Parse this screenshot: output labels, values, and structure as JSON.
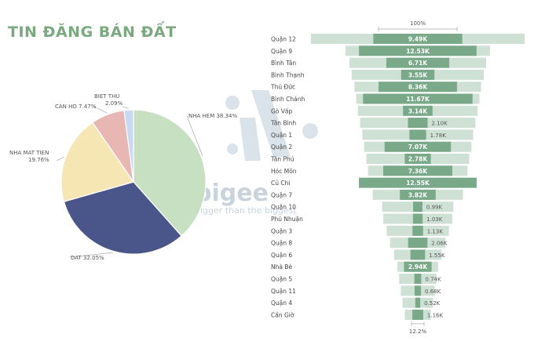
{
  "page_title": "TIN ĐĂNG BÁN ĐẤT",
  "watermark": {
    "text": "bigee",
    "subtitle": "bigger than the biggest"
  },
  "chart_data": [
    {
      "type": "pie",
      "title": "",
      "slices": [
        {
          "label": "NHA HEM",
          "pct_label": "38.34%",
          "value": 38.34,
          "color": "#c7e0c2"
        },
        {
          "label": "DAT",
          "pct_label": "32.05%",
          "value": 32.05,
          "color": "#4a5689"
        },
        {
          "label": "NHA MAT TIEN",
          "pct_label": "19.76%",
          "value": 19.76,
          "color": "#f5e6b4"
        },
        {
          "label": "CAN HO",
          "pct_label": "7.47%",
          "value": 7.47,
          "color": "#e8b7b3"
        },
        {
          "label": "BIET THU",
          "pct_label": "2.09%",
          "value": 2.09,
          "color": "#c9daf0"
        }
      ]
    },
    {
      "type": "bar",
      "subtype": "funnel",
      "top_label": "100%",
      "bottom_label": "12.2%",
      "bar_color": "#7aa98a",
      "background_color": "#cfe0d4",
      "categories": [
        "Quận 12",
        "Quận 9",
        "Bình Tân",
        "Bình Thạnh",
        "Thủ Đức",
        "Bình Chánh",
        "Gò Vấp",
        "Tân Bình",
        "Quận 1",
        "Quận 2",
        "Tân Phú",
        "Hóc Môn",
        "Củ Chi",
        "Quận 7",
        "Quận 10",
        "Phú Nhuận",
        "Quận 3",
        "Quận 8",
        "Quận 6",
        "Nhà Bè",
        "Quận 5",
        "Quận 11",
        "Quận 4",
        "Cần Giờ"
      ],
      "values": [
        9.49,
        12.53,
        6.71,
        3.55,
        8.36,
        11.67,
        3.14,
        2.1,
        1.78,
        7.07,
        2.78,
        7.36,
        12.55,
        3.82,
        0.99,
        1.03,
        1.13,
        2.06,
        1.55,
        2.94,
        0.74,
        0.68,
        0.52,
        1.16
      ],
      "value_labels": [
        "9.49K",
        "12.53K",
        "6.71K",
        "3.55K",
        "8.36K",
        "11.67K",
        "3.14K",
        "2.10K",
        "1.78K",
        "7.07K",
        "2.78K",
        "7.36K",
        "12.55K",
        "3.82K",
        "0.99K",
        "1.03K",
        "1.13K",
        "2.06K",
        "1.55K",
        "2.94K",
        "0.74K",
        "0.68K",
        "0.52K",
        "1.16K"
      ],
      "background_values": [
        18.9,
        12.8,
        12.1,
        11.7,
        11.2,
        10.9,
        10.6,
        10.2,
        9.8,
        9.5,
        9.1,
        8.8,
        8.4,
        8.0,
        6.3,
        6.1,
        5.5,
        4.9,
        4.2,
        3.6,
        3.3,
        3.0,
        2.7,
        2.3
      ]
    }
  ]
}
